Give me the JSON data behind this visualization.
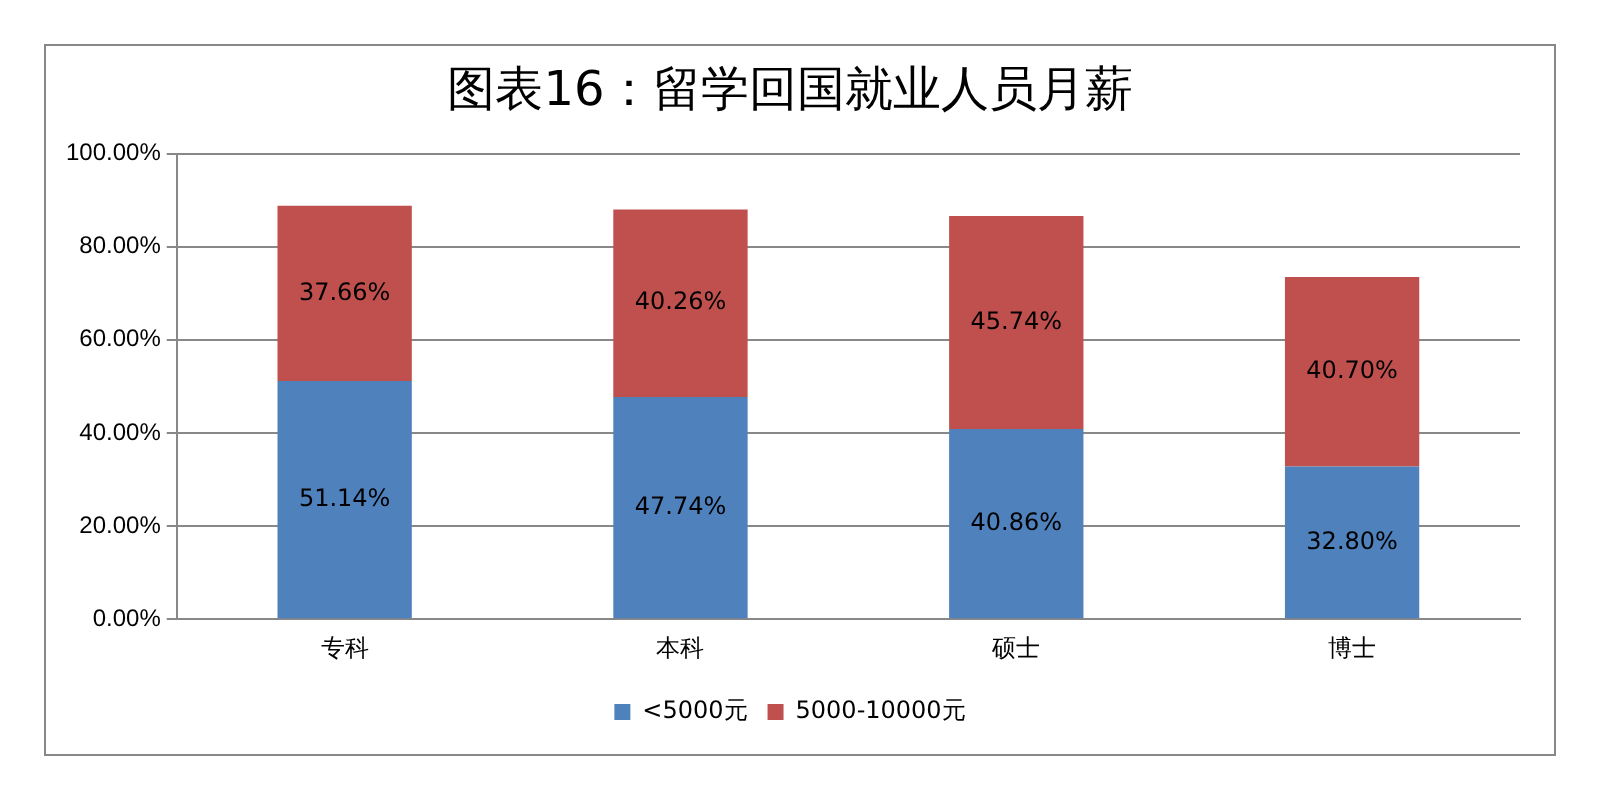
{
  "chart_data": {
    "type": "bar",
    "title": "图表16：留学回国就业人员月薪",
    "categories": [
      "专科",
      "本科",
      "硕士",
      "博士"
    ],
    "stacked": true,
    "series": [
      {
        "name": "<5000元",
        "color": "#4f81bd",
        "values": [
          51.14,
          47.74,
          40.86,
          32.8
        ],
        "value_labels": [
          "51.14%",
          "47.74%",
          "40.86%",
          "32.80%"
        ]
      },
      {
        "name": "5000-10000元",
        "color": "#c0504d",
        "values": [
          37.66,
          40.26,
          45.74,
          40.7
        ],
        "value_labels": [
          "37.66%",
          "40.26%",
          "45.74%",
          "40.70%"
        ]
      }
    ],
    "ylim": [
      0,
      100
    ],
    "yticks": [
      {
        "value": 0,
        "label": "0.00%"
      },
      {
        "value": 20,
        "label": "20.00%"
      },
      {
        "value": 40,
        "label": "40.00%"
      },
      {
        "value": 60,
        "label": "60.00%"
      },
      {
        "value": 80,
        "label": "80.00%"
      },
      {
        "value": 100,
        "label": "100.00%"
      }
    ],
    "grid": "y",
    "legend": "bottom"
  }
}
